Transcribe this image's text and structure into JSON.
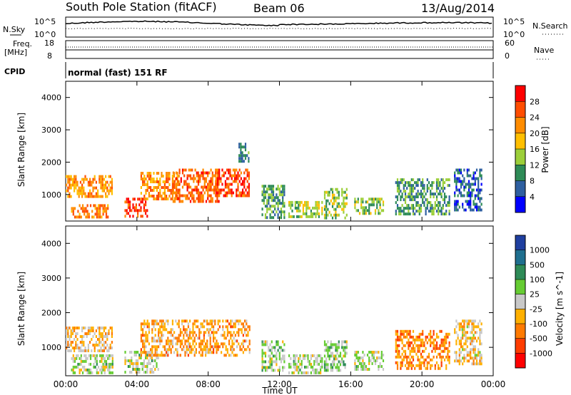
{
  "header": {
    "station": "South Pole Station (fitACF)",
    "beam": "Beam 06",
    "date": "13/Aug/2014"
  },
  "panels": {
    "nsky": {
      "left_label": "N.Sky",
      "left_top": "10^5",
      "left_bottom": "10^0",
      "right_top": "10^5",
      "right_bottom": "10^0",
      "right_label": "N.Search"
    },
    "freq": {
      "left_label_1": "Freq.",
      "left_label_2": "[MHz]",
      "left_top": "18",
      "left_bottom": "8",
      "right_top": "60",
      "right_bottom": "0",
      "right_label": "Nave"
    },
    "cpid": {
      "label": "CPID",
      "text": "normal (fast) 151 RF"
    }
  },
  "colorbars": {
    "power": {
      "label": "Power [dB]",
      "ticks": [
        "28",
        "24",
        "20",
        "16",
        "12",
        "8",
        "4"
      ],
      "colors": [
        "#ff0000",
        "#ff4d00",
        "#ff8c00",
        "#ffbf00",
        "#9ccf3a",
        "#2e8b57",
        "#2e5fa0",
        "#0000ff"
      ]
    },
    "velocity": {
      "label": "Velocity [m s^-1]",
      "ticks": [
        "1000",
        "500",
        "100",
        "25",
        "-25",
        "-100",
        "-500",
        "-1000"
      ],
      "colors": [
        "#1f3f9f",
        "#1f6f8f",
        "#2e8b57",
        "#66cc33",
        "#c8c8c8",
        "#ffb000",
        "#ff7a00",
        "#ff3c00",
        "#ff0000"
      ]
    }
  },
  "chart_data": [
    {
      "type": "heatmap",
      "title": "Power",
      "ylabel": "Slant Range [km]",
      "xlabel": "",
      "x_ticks": [
        "00:00",
        "04:00",
        "08:00",
        "12:00",
        "16:00",
        "20:00",
        "00:00"
      ],
      "y_ticks": [
        1000,
        2000,
        3000,
        4000
      ],
      "xlim": [
        0,
        24
      ],
      "ylim": [
        180,
        4500
      ],
      "colorbar": "Power [dB]",
      "clim": [
        0,
        30
      ],
      "regions": [
        {
          "t0": 0.0,
          "t1": 2.6,
          "r0": 900,
          "r1": 1600,
          "v": 20
        },
        {
          "t0": 0.3,
          "t1": 2.4,
          "r0": 300,
          "r1": 700,
          "v": 22
        },
        {
          "t0": 3.3,
          "t1": 4.6,
          "r0": 300,
          "r1": 900,
          "v": 26
        },
        {
          "t0": 4.2,
          "t1": 6.4,
          "r0": 900,
          "r1": 1700,
          "v": 21
        },
        {
          "t0": 6.0,
          "t1": 8.6,
          "r0": 800,
          "r1": 1800,
          "v": 23
        },
        {
          "t0": 8.4,
          "t1": 10.3,
          "r0": 1000,
          "r1": 1800,
          "v": 25
        },
        {
          "t0": 9.7,
          "t1": 10.3,
          "r0": 2000,
          "r1": 2600,
          "v": 8
        },
        {
          "t0": 11.0,
          "t1": 12.3,
          "r0": 300,
          "r1": 1300,
          "v": 10
        },
        {
          "t0": 12.5,
          "t1": 14.4,
          "r0": 300,
          "r1": 800,
          "v": 14
        },
        {
          "t0": 14.5,
          "t1": 15.8,
          "r0": 300,
          "r1": 1200,
          "v": 13
        },
        {
          "t0": 16.2,
          "t1": 17.8,
          "r0": 400,
          "r1": 900,
          "v": 12
        },
        {
          "t0": 18.5,
          "t1": 21.5,
          "r0": 400,
          "r1": 1500,
          "v": 10
        },
        {
          "t0": 21.8,
          "t1": 23.3,
          "r0": 500,
          "r1": 1800,
          "v": 6
        }
      ]
    },
    {
      "type": "heatmap",
      "title": "Velocity",
      "ylabel": "Slant Range [km]",
      "xlabel": "Time UT",
      "x_ticks": [
        "00:00",
        "04:00",
        "08:00",
        "12:00",
        "16:00",
        "20:00",
        "00:00"
      ],
      "y_ticks": [
        1000,
        2000,
        3000,
        4000
      ],
      "xlim": [
        0,
        24
      ],
      "ylim": [
        180,
        4500
      ],
      "colorbar": "Velocity [m s^-1]",
      "clim": [
        -1000,
        1000
      ],
      "regions": [
        {
          "t0": 0.0,
          "t1": 2.6,
          "r0": 900,
          "r1": 1600,
          "v": -200
        },
        {
          "t0": 0.3,
          "t1": 2.6,
          "r0": 300,
          "r1": 800,
          "v": 80
        },
        {
          "t0": 3.3,
          "t1": 5.2,
          "r0": 300,
          "r1": 900,
          "v": 70
        },
        {
          "t0": 4.2,
          "t1": 10.3,
          "r0": 800,
          "r1": 1800,
          "v": -300
        },
        {
          "t0": 11.0,
          "t1": 12.3,
          "r0": 300,
          "r1": 1200,
          "v": 120
        },
        {
          "t0": 12.5,
          "t1": 14.4,
          "r0": 300,
          "r1": 800,
          "v": 90
        },
        {
          "t0": 14.5,
          "t1": 15.8,
          "r0": 300,
          "r1": 1200,
          "v": 150
        },
        {
          "t0": 16.2,
          "t1": 17.8,
          "r0": 400,
          "r1": 900,
          "v": 60
        },
        {
          "t0": 18.5,
          "t1": 21.5,
          "r0": 400,
          "r1": 1500,
          "v": -400
        },
        {
          "t0": 21.8,
          "t1": 23.3,
          "r0": 500,
          "r1": 1800,
          "v": -150
        }
      ]
    }
  ]
}
